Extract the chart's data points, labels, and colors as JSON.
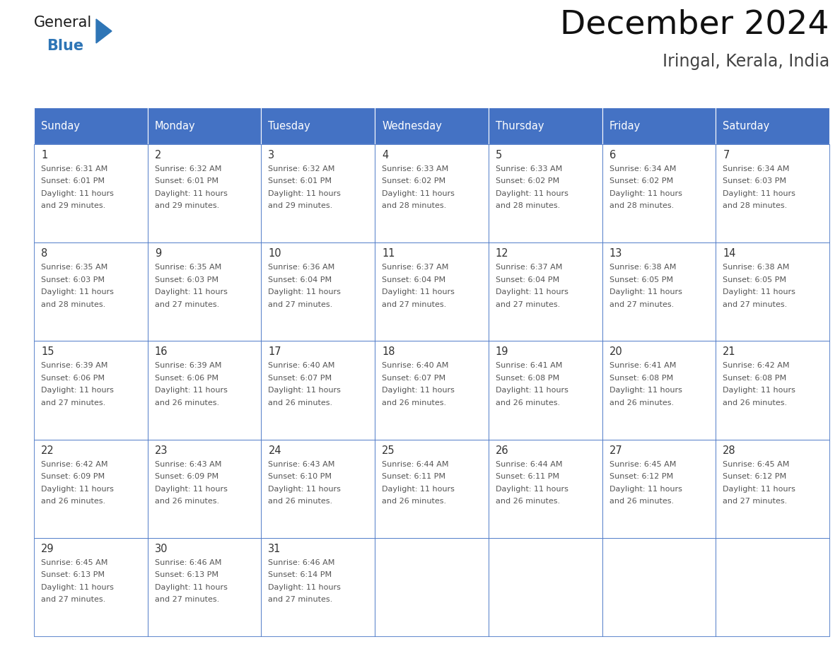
{
  "title": "December 2024",
  "subtitle": "Iringal, Kerala, India",
  "header_color": "#4472C4",
  "header_text_color": "#FFFFFF",
  "cell_bg_color": "#FFFFFF",
  "cell_border_color": "#4472C4",
  "day_number_color": "#333333",
  "cell_text_color": "#555555",
  "days_of_week": [
    "Sunday",
    "Monday",
    "Tuesday",
    "Wednesday",
    "Thursday",
    "Friday",
    "Saturday"
  ],
  "weeks": [
    [
      {
        "day": 1,
        "sunrise": "6:31 AM",
        "sunset": "6:01 PM",
        "daylight": "11 hours\nand 29 minutes."
      },
      {
        "day": 2,
        "sunrise": "6:32 AM",
        "sunset": "6:01 PM",
        "daylight": "11 hours\nand 29 minutes."
      },
      {
        "day": 3,
        "sunrise": "6:32 AM",
        "sunset": "6:01 PM",
        "daylight": "11 hours\nand 29 minutes."
      },
      {
        "day": 4,
        "sunrise": "6:33 AM",
        "sunset": "6:02 PM",
        "daylight": "11 hours\nand 28 minutes."
      },
      {
        "day": 5,
        "sunrise": "6:33 AM",
        "sunset": "6:02 PM",
        "daylight": "11 hours\nand 28 minutes."
      },
      {
        "day": 6,
        "sunrise": "6:34 AM",
        "sunset": "6:02 PM",
        "daylight": "11 hours\nand 28 minutes."
      },
      {
        "day": 7,
        "sunrise": "6:34 AM",
        "sunset": "6:03 PM",
        "daylight": "11 hours\nand 28 minutes."
      }
    ],
    [
      {
        "day": 8,
        "sunrise": "6:35 AM",
        "sunset": "6:03 PM",
        "daylight": "11 hours\nand 28 minutes."
      },
      {
        "day": 9,
        "sunrise": "6:35 AM",
        "sunset": "6:03 PM",
        "daylight": "11 hours\nand 27 minutes."
      },
      {
        "day": 10,
        "sunrise": "6:36 AM",
        "sunset": "6:04 PM",
        "daylight": "11 hours\nand 27 minutes."
      },
      {
        "day": 11,
        "sunrise": "6:37 AM",
        "sunset": "6:04 PM",
        "daylight": "11 hours\nand 27 minutes."
      },
      {
        "day": 12,
        "sunrise": "6:37 AM",
        "sunset": "6:04 PM",
        "daylight": "11 hours\nand 27 minutes."
      },
      {
        "day": 13,
        "sunrise": "6:38 AM",
        "sunset": "6:05 PM",
        "daylight": "11 hours\nand 27 minutes."
      },
      {
        "day": 14,
        "sunrise": "6:38 AM",
        "sunset": "6:05 PM",
        "daylight": "11 hours\nand 27 minutes."
      }
    ],
    [
      {
        "day": 15,
        "sunrise": "6:39 AM",
        "sunset": "6:06 PM",
        "daylight": "11 hours\nand 27 minutes."
      },
      {
        "day": 16,
        "sunrise": "6:39 AM",
        "sunset": "6:06 PM",
        "daylight": "11 hours\nand 26 minutes."
      },
      {
        "day": 17,
        "sunrise": "6:40 AM",
        "sunset": "6:07 PM",
        "daylight": "11 hours\nand 26 minutes."
      },
      {
        "day": 18,
        "sunrise": "6:40 AM",
        "sunset": "6:07 PM",
        "daylight": "11 hours\nand 26 minutes."
      },
      {
        "day": 19,
        "sunrise": "6:41 AM",
        "sunset": "6:08 PM",
        "daylight": "11 hours\nand 26 minutes."
      },
      {
        "day": 20,
        "sunrise": "6:41 AM",
        "sunset": "6:08 PM",
        "daylight": "11 hours\nand 26 minutes."
      },
      {
        "day": 21,
        "sunrise": "6:42 AM",
        "sunset": "6:08 PM",
        "daylight": "11 hours\nand 26 minutes."
      }
    ],
    [
      {
        "day": 22,
        "sunrise": "6:42 AM",
        "sunset": "6:09 PM",
        "daylight": "11 hours\nand 26 minutes."
      },
      {
        "day": 23,
        "sunrise": "6:43 AM",
        "sunset": "6:09 PM",
        "daylight": "11 hours\nand 26 minutes."
      },
      {
        "day": 24,
        "sunrise": "6:43 AM",
        "sunset": "6:10 PM",
        "daylight": "11 hours\nand 26 minutes."
      },
      {
        "day": 25,
        "sunrise": "6:44 AM",
        "sunset": "6:11 PM",
        "daylight": "11 hours\nand 26 minutes."
      },
      {
        "day": 26,
        "sunrise": "6:44 AM",
        "sunset": "6:11 PM",
        "daylight": "11 hours\nand 26 minutes."
      },
      {
        "day": 27,
        "sunrise": "6:45 AM",
        "sunset": "6:12 PM",
        "daylight": "11 hours\nand 26 minutes."
      },
      {
        "day": 28,
        "sunrise": "6:45 AM",
        "sunset": "6:12 PM",
        "daylight": "11 hours\nand 27 minutes."
      }
    ],
    [
      {
        "day": 29,
        "sunrise": "6:45 AM",
        "sunset": "6:13 PM",
        "daylight": "11 hours\nand 27 minutes."
      },
      {
        "day": 30,
        "sunrise": "6:46 AM",
        "sunset": "6:13 PM",
        "daylight": "11 hours\nand 27 minutes."
      },
      {
        "day": 31,
        "sunrise": "6:46 AM",
        "sunset": "6:14 PM",
        "daylight": "11 hours\nand 27 minutes."
      },
      null,
      null,
      null,
      null
    ]
  ],
  "logo_color_general": "#1a1a1a",
  "logo_color_blue": "#2E75B6",
  "logo_triangle_color": "#2E75B6",
  "fig_width": 11.88,
  "fig_height": 9.18,
  "dpi": 100
}
